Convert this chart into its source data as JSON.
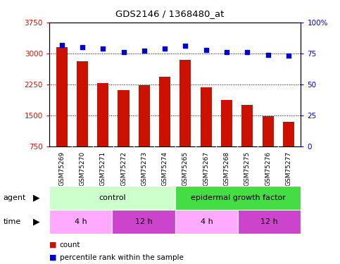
{
  "title": "GDS2146 / 1368480_at",
  "samples": [
    "GSM75269",
    "GSM75270",
    "GSM75271",
    "GSM75272",
    "GSM75273",
    "GSM75274",
    "GSM75265",
    "GSM75267",
    "GSM75268",
    "GSM75275",
    "GSM75276",
    "GSM75277"
  ],
  "bar_values": [
    3150,
    2820,
    2290,
    2110,
    2230,
    2440,
    2840,
    2190,
    1870,
    1750,
    1480,
    1340
  ],
  "percentile_values": [
    82,
    80,
    79,
    76,
    77,
    79,
    81,
    78,
    76,
    76,
    74,
    73
  ],
  "bar_color": "#cc1100",
  "dot_color": "#0000cc",
  "ylim_left": [
    750,
    3750
  ],
  "ylim_right": [
    0,
    100
  ],
  "yticks_left": [
    750,
    1500,
    2250,
    3000,
    3750
  ],
  "yticks_right": [
    0,
    25,
    50,
    75,
    100
  ],
  "grid_values": [
    1500,
    2250,
    3000
  ],
  "agent_labels": [
    {
      "text": "control",
      "start": 0,
      "end": 6,
      "color": "#ccffcc"
    },
    {
      "text": "epidermal growth factor",
      "start": 6,
      "end": 12,
      "color": "#44dd44"
    }
  ],
  "time_labels": [
    {
      "text": "4 h",
      "start": 0,
      "end": 3,
      "color": "#ffaaff"
    },
    {
      "text": "12 h",
      "start": 3,
      "end": 6,
      "color": "#cc44cc"
    },
    {
      "text": "4 h",
      "start": 6,
      "end": 9,
      "color": "#ffaaff"
    },
    {
      "text": "12 h",
      "start": 9,
      "end": 12,
      "color": "#cc44cc"
    }
  ],
  "legend_count_label": "count",
  "legend_pct_label": "percentile rank within the sample",
  "bg_color": "#c8c8c8",
  "plot_bg_color": "#ffffff",
  "bar_width": 0.55
}
